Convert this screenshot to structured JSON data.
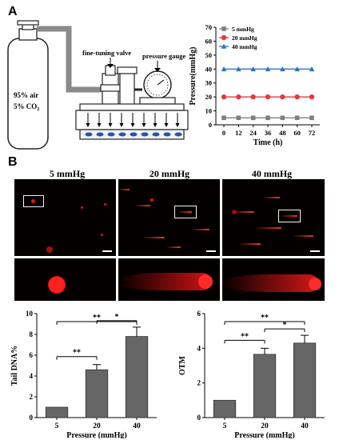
{
  "panel_a": {
    "letter": "A",
    "cylinder_text_1": "95% air",
    "cylinder_text_2": "5% CO",
    "cylinder_text_sub": "2",
    "valve_label": "fine-tuning valve",
    "gauge_label": "pressure gauge"
  },
  "panel_b": {
    "letter": "B",
    "conditions": [
      "5 mmHg",
      "20 mmHg",
      "40 mmHg"
    ]
  },
  "colors": {
    "s5": "#7f7f7f",
    "s20": "#e8383d",
    "s40": "#2e75b6",
    "bar": "#666666"
  },
  "chart_data": [
    {
      "type": "line",
      "ylabel": "Pressure(mmHg)",
      "xlabel": "Time (h)",
      "x": [
        0,
        12,
        24,
        36,
        48,
        60,
        72
      ],
      "xlim": [
        0,
        72
      ],
      "ylim": [
        0,
        70
      ],
      "yticks": [
        0,
        10,
        20,
        30,
        40,
        50,
        60,
        70
      ],
      "legend_position": "top-left",
      "series": [
        {
          "name": "5 mmHg",
          "marker": "square",
          "color": "#7f7f7f",
          "values": [
            5,
            5,
            5,
            5,
            5,
            5,
            5
          ]
        },
        {
          "name": "20 mmHg",
          "marker": "circle",
          "color": "#e8383d",
          "values": [
            20,
            20,
            20,
            20,
            20,
            20,
            20
          ]
        },
        {
          "name": "40 mmHg",
          "marker": "triangle",
          "color": "#2e75b6",
          "values": [
            40,
            40,
            40,
            40,
            40,
            40,
            40
          ]
        }
      ]
    },
    {
      "type": "bar",
      "ylabel": "Tail DNA%",
      "xlabel": "Pressure (mmHg)",
      "categories": [
        "5",
        "20",
        "40"
      ],
      "values": [
        1.0,
        4.6,
        7.8
      ],
      "errors": [
        0,
        0.5,
        0.9
      ],
      "ylim": [
        0,
        10
      ],
      "yticks": [
        0,
        2,
        4,
        6,
        8,
        10
      ],
      "significance": [
        {
          "from": 0,
          "to": 1,
          "label": "**"
        },
        {
          "from": 0,
          "to": 2,
          "label": "**"
        },
        {
          "from": 1,
          "to": 2,
          "label": "*"
        }
      ]
    },
    {
      "type": "bar",
      "ylabel": "OTM",
      "xlabel": "Pressure (mmHg)",
      "categories": [
        "5",
        "20",
        "40"
      ],
      "values": [
        1.0,
        3.65,
        4.3
      ],
      "errors": [
        0,
        0.35,
        0.45
      ],
      "ylim": [
        0,
        6
      ],
      "yticks": [
        0,
        2,
        4,
        6
      ],
      "significance": [
        {
          "from": 0,
          "to": 1,
          "label": "**"
        },
        {
          "from": 0,
          "to": 2,
          "label": "**"
        },
        {
          "from": 1,
          "to": 2,
          "label": "*"
        }
      ]
    }
  ]
}
